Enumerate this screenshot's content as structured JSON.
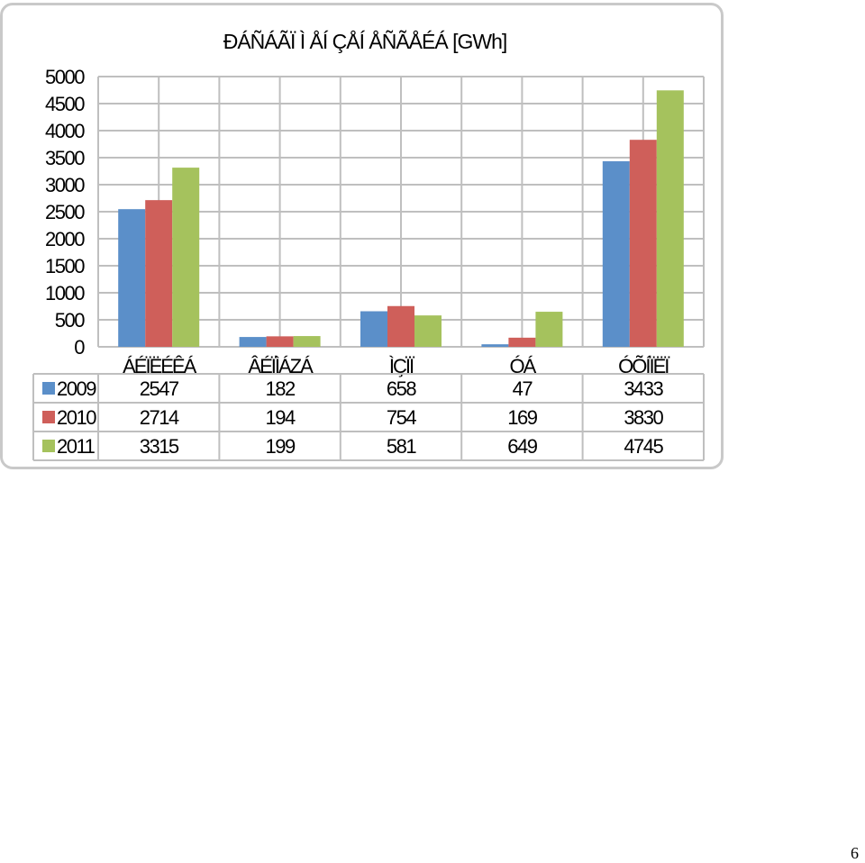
{
  "chart_data": {
    "type": "bar",
    "title": "ĐÁÑÁÃÏ Ì ÅÍ ÇÅÍ ÅÑÃÅÉÁ [GWh]",
    "categories": [
      "ÁÉÏËÉÊÁ",
      "ÂÉÏÌÁZÁ",
      "ÌÇÏÏ",
      "ÓÁ",
      "ÓÕÍÏËÏ"
    ],
    "series": [
      {
        "name": "2009",
        "values": [
          2547,
          182,
          658,
          47,
          3433
        ],
        "color": "#5b8fc9"
      },
      {
        "name": "2010",
        "values": [
          2714,
          194,
          754,
          169,
          3830
        ],
        "color": "#cf5f5a"
      },
      {
        "name": "2011",
        "values": [
          3315,
          199,
          581,
          649,
          4745
        ],
        "color": "#a5c25d"
      }
    ],
    "yticks": [
      0,
      500,
      1000,
      1500,
      2000,
      2500,
      3000,
      3500,
      4000,
      4500,
      5000
    ],
    "ylim": [
      0,
      5000
    ],
    "xlabel": "",
    "ylabel": "",
    "grid": true,
    "legend": "data-table"
  },
  "page": {
    "number": "6"
  }
}
